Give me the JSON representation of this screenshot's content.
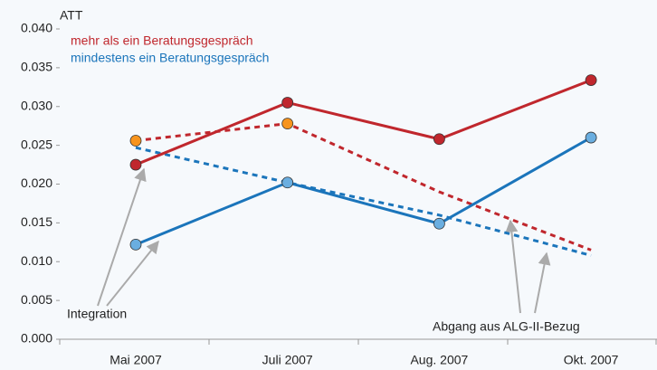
{
  "chart_data": {
    "type": "line",
    "y_label": "ATT",
    "categories": [
      "Mai 2007",
      "Juli 2007",
      "Aug. 2007",
      "Okt. 2007"
    ],
    "series": [
      {
        "name": "mehr als ein Beratungsgespräch",
        "color": "#c0272d",
        "style": "solid",
        "marker_color": "#c0272d",
        "values": [
          0.0225,
          0.0305,
          0.0258,
          0.0334
        ]
      },
      {
        "name": "mindestens ein Beratungsgespräch",
        "color": "#1b75bb",
        "style": "solid",
        "marker_color": "#6aaee0",
        "values": [
          0.0122,
          0.0202,
          0.0149,
          0.026
        ]
      },
      {
        "color": "#c0272d",
        "style": "dashed",
        "marker_color": "#f7941d",
        "markers": [
          true,
          true,
          false,
          false
        ],
        "values": [
          0.0256,
          0.0278,
          0.019,
          0.0115
        ]
      },
      {
        "color": "#1b75bb",
        "style": "dashed",
        "values": [
          0.0247,
          0.0202,
          0.016,
          0.0108
        ]
      }
    ],
    "ylim": [
      0,
      0.04
    ],
    "yticks": [
      {
        "value": 0,
        "label": "0.000"
      },
      {
        "value": 0.005,
        "label": "0.005"
      },
      {
        "value": 0.01,
        "label": "0.010"
      },
      {
        "value": 0.015,
        "label": "0.015"
      },
      {
        "value": 0.02,
        "label": "0.020"
      },
      {
        "value": 0.025,
        "label": "0.025"
      },
      {
        "value": 0.03,
        "label": "0.030"
      },
      {
        "value": 0.035,
        "label": "0.035"
      },
      {
        "value": 0.04,
        "label": "0.040"
      }
    ],
    "annotations": [
      "Integration",
      "Abgang aus ALG-II-Bezug"
    ],
    "grid": false
  }
}
